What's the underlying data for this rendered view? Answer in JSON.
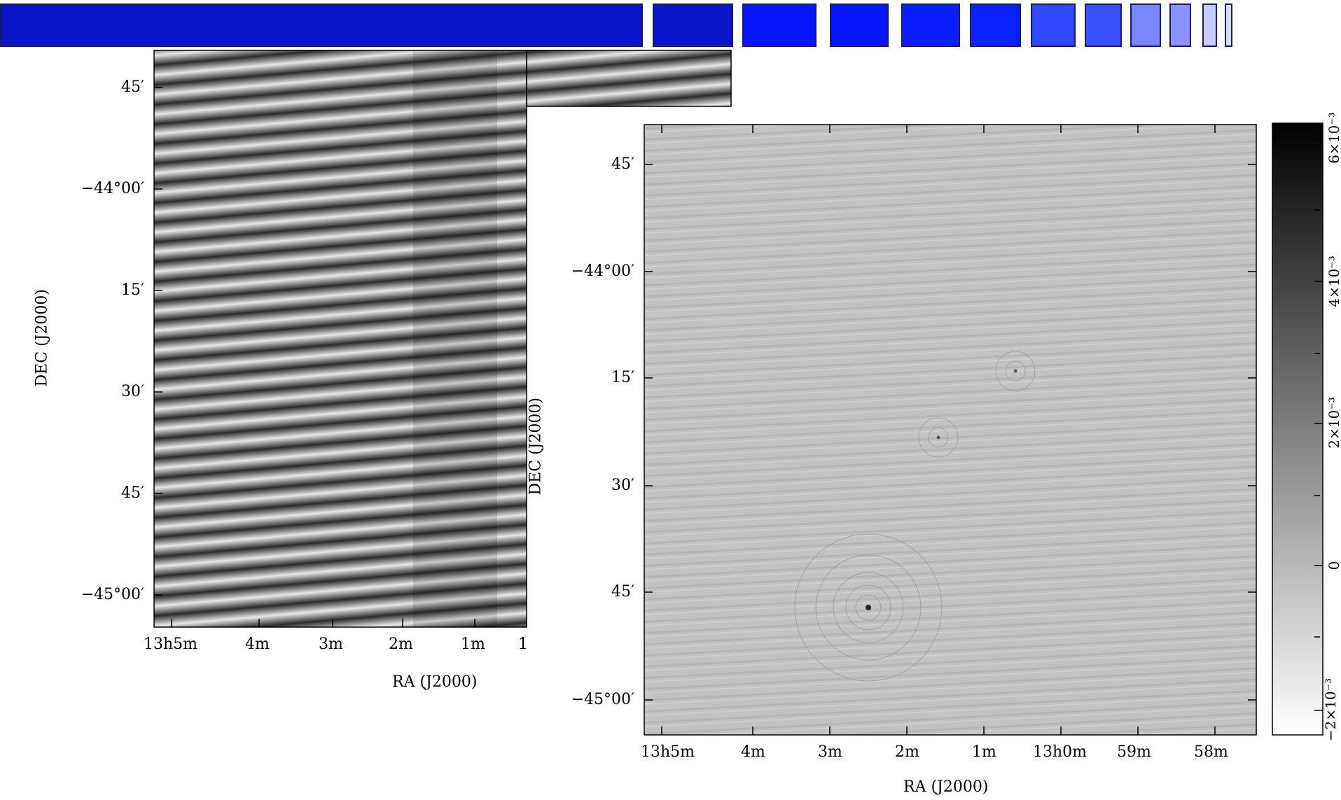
{
  "progress": {
    "colors": [
      "#0a14c8",
      "#0b16c8",
      "#0516ff",
      "#0616ff",
      "#0a1eff",
      "#0920ff",
      "#3048ff",
      "#3a50ff",
      "#7a86ff",
      "#8a92ff",
      "#c8cdff",
      "#d8dcff"
    ]
  },
  "panel_left": {
    "ylabel": "DEC (J2000)",
    "xlabel": "RA (J2000)",
    "y_ticks": [
      "45′",
      "−44°00′",
      "15′",
      "30′",
      "45′",
      "−45°00′"
    ],
    "x_ticks": [
      "13h5m",
      "4m",
      "3m",
      "2m",
      "1m",
      "1"
    ]
  },
  "panel_right": {
    "ylabel": "DEC (J2000)",
    "xlabel": "RA (J2000)",
    "y_ticks": [
      "45′",
      "−44°00′",
      "15′",
      "30′",
      "45′",
      "−45°00′"
    ],
    "x_ticks": [
      "13h5m",
      "4m",
      "3m",
      "2m",
      "1m",
      "13h0m",
      "59m",
      "58m"
    ]
  },
  "colorbar": {
    "ticks": [
      "6×10⁻³",
      "4×10⁻³",
      "2×10⁻³",
      "0",
      "−2×10⁻³"
    ]
  }
}
